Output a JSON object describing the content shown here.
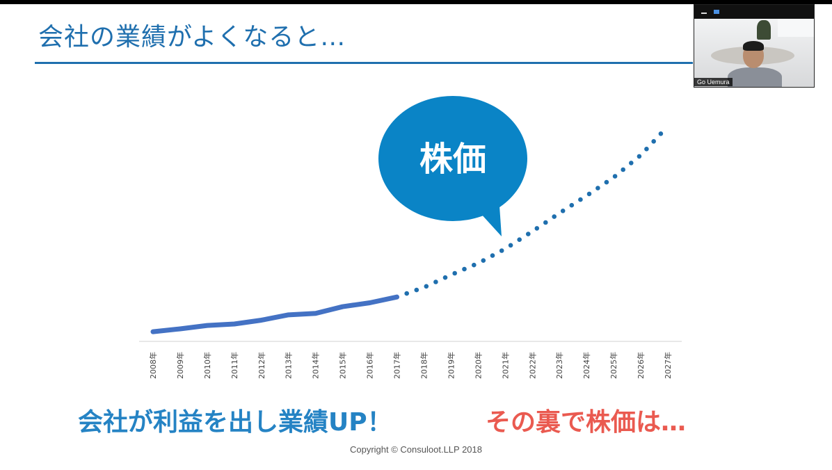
{
  "slide": {
    "title": "会社の業績がよくなると…",
    "caption_left": "会社が利益を出し業績UP！",
    "caption_right": "その裏で株価は…",
    "copyright": "Copyright © Consuloot.LLP 2018"
  },
  "bubble": {
    "label": "株価"
  },
  "video": {
    "participant_name": "Go Uemura",
    "minimize_icon": "minimize-icon",
    "layout_icon": "layout-icon"
  },
  "colors": {
    "title": "#1f6fae",
    "line": "#4472c4",
    "dotted": "#1f6fae",
    "bubble": "#0a84c6",
    "caption_left": "#2583c4",
    "caption_right": "#ea5a50"
  },
  "chart_data": {
    "type": "line",
    "categories": [
      "2008年",
      "2009年",
      "2010年",
      "2011年",
      "2012年",
      "2013年",
      "2014年",
      "2015年",
      "2016年",
      "2017年",
      "2018年",
      "2019年",
      "2020年",
      "2021年",
      "2022年",
      "2023年",
      "2024年",
      "2025年",
      "2026年",
      "2027年"
    ],
    "series": [
      {
        "style": "solid",
        "values": [
          1.0,
          1.3,
          1.65,
          1.8,
          2.2,
          2.75,
          2.9,
          3.6,
          4.0,
          4.6,
          null,
          null,
          null,
          null,
          null,
          null,
          null,
          null,
          null,
          null
        ]
      },
      {
        "style": "dotted",
        "values": [
          null,
          null,
          null,
          null,
          null,
          null,
          null,
          null,
          null,
          4.6,
          5.6,
          6.9,
          8.1,
          9.6,
          11.4,
          13.3,
          15.1,
          17.0,
          19.3,
          22.3
        ]
      }
    ],
    "ylim": [
      0,
      24
    ],
    "grid": false,
    "legend": "none"
  }
}
